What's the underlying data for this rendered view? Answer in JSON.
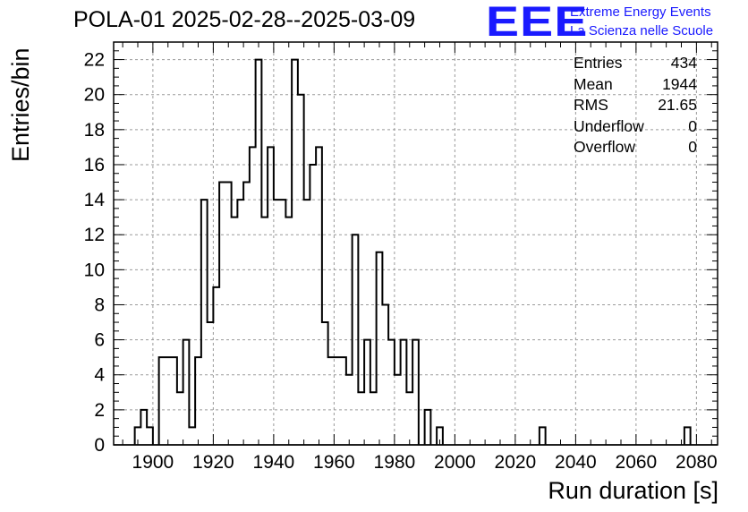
{
  "title": "POLA-01 2025-02-28--2025-03-09",
  "logo": {
    "mark": "EEE",
    "line1": "Extreme Energy Events",
    "line2": "La Scienza nelle Scuole",
    "color": "#1a1aff"
  },
  "stats": {
    "entries_label": "Entries",
    "entries_value": "434",
    "mean_label": "Mean",
    "mean_value": "1944",
    "rms_label": "RMS",
    "rms_value": "21.65",
    "underflow_label": "Underflow",
    "underflow_value": "0",
    "overflow_label": "Overflow",
    "overflow_value": "0"
  },
  "chart_data": {
    "type": "bar",
    "style": "step-histogram",
    "xlabel": "Run duration [s]",
    "ylabel": "Entries/bin",
    "xlim": [
      1887,
      2087
    ],
    "ylim": [
      0,
      23
    ],
    "x_ticks": [
      1900,
      1920,
      1940,
      1960,
      1980,
      2000,
      2020,
      2040,
      2060,
      2080
    ],
    "y_ticks": [
      0,
      2,
      4,
      6,
      8,
      10,
      12,
      14,
      16,
      18,
      20,
      22
    ],
    "grid": true,
    "line_color": "#000000",
    "bin_width": 2,
    "bins": [
      {
        "x": 1895,
        "y": 1
      },
      {
        "x": 1897,
        "y": 2
      },
      {
        "x": 1899,
        "y": 1
      },
      {
        "x": 1903,
        "y": 5
      },
      {
        "x": 1905,
        "y": 5
      },
      {
        "x": 1907,
        "y": 5
      },
      {
        "x": 1909,
        "y": 3
      },
      {
        "x": 1911,
        "y": 6
      },
      {
        "x": 1913,
        "y": 1
      },
      {
        "x": 1915,
        "y": 5
      },
      {
        "x": 1917,
        "y": 14
      },
      {
        "x": 1919,
        "y": 7
      },
      {
        "x": 1921,
        "y": 9
      },
      {
        "x": 1923,
        "y": 15
      },
      {
        "x": 1925,
        "y": 15
      },
      {
        "x": 1927,
        "y": 13
      },
      {
        "x": 1929,
        "y": 14
      },
      {
        "x": 1931,
        "y": 15
      },
      {
        "x": 1933,
        "y": 17
      },
      {
        "x": 1935,
        "y": 22
      },
      {
        "x": 1937,
        "y": 13
      },
      {
        "x": 1939,
        "y": 17
      },
      {
        "x": 1941,
        "y": 14
      },
      {
        "x": 1943,
        "y": 14
      },
      {
        "x": 1945,
        "y": 13
      },
      {
        "x": 1947,
        "y": 22
      },
      {
        "x": 1949,
        "y": 20
      },
      {
        "x": 1951,
        "y": 14
      },
      {
        "x": 1953,
        "y": 16
      },
      {
        "x": 1955,
        "y": 17
      },
      {
        "x": 1957,
        "y": 7
      },
      {
        "x": 1959,
        "y": 5
      },
      {
        "x": 1961,
        "y": 5
      },
      {
        "x": 1963,
        "y": 5
      },
      {
        "x": 1965,
        "y": 4
      },
      {
        "x": 1967,
        "y": 12
      },
      {
        "x": 1969,
        "y": 3
      },
      {
        "x": 1971,
        "y": 6
      },
      {
        "x": 1973,
        "y": 3
      },
      {
        "x": 1975,
        "y": 11
      },
      {
        "x": 1977,
        "y": 8
      },
      {
        "x": 1979,
        "y": 6
      },
      {
        "x": 1981,
        "y": 4
      },
      {
        "x": 1983,
        "y": 6
      },
      {
        "x": 1985,
        "y": 3
      },
      {
        "x": 1987,
        "y": 6
      },
      {
        "x": 1991,
        "y": 2
      },
      {
        "x": 1995,
        "y": 1
      },
      {
        "x": 2029,
        "y": 1
      },
      {
        "x": 2077,
        "y": 1
      }
    ]
  }
}
